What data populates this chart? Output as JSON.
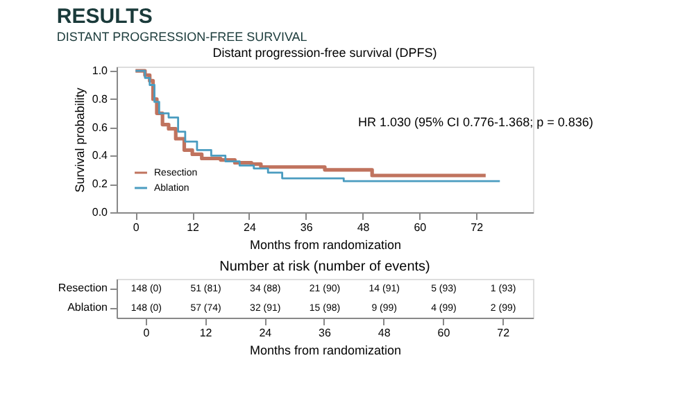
{
  "chart_data": [
    {
      "type": "step",
      "title": "Distant progression-free survival (DPFS)",
      "annotations": [
        "RESULTS",
        "DISTANT PROGRESSION-FREE SURVIVAL",
        "HR 1.030 (95% CI 0.776-1.368; p = 0.836)"
      ],
      "xlabel": "Months from randomization",
      "ylabel": "Survival probability",
      "xlim": [
        -4,
        84
      ],
      "xticks": [
        0,
        12,
        24,
        36,
        48,
        60,
        72
      ],
      "ylim": [
        0,
        1.03
      ],
      "yticks": [
        {
          "value": 0,
          "label": "0.0"
        },
        {
          "value": 0.2,
          "label": "0.2"
        },
        {
          "value": 0.4,
          "label": "0.4"
        },
        {
          "value": 0.6,
          "label": "0.6"
        },
        {
          "value": 0.8,
          "label": "0.8"
        },
        {
          "value": 1,
          "label": "1.0"
        }
      ],
      "grid": false,
      "legend": "bottom left",
      "series": [
        {
          "name": "Resection",
          "color": "#c0735e",
          "x": [
            0,
            2,
            3,
            3.7,
            4.5,
            5.7,
            7,
            8.5,
            10.3,
            12,
            14,
            18,
            21,
            24.5,
            26.5,
            40,
            50,
            74
          ],
          "values": [
            1.0,
            0.97,
            0.93,
            0.8,
            0.7,
            0.62,
            0.59,
            0.52,
            0.44,
            0.41,
            0.38,
            0.37,
            0.35,
            0.34,
            0.32,
            0.3,
            0.26,
            0.26
          ]
        },
        {
          "name": "Ablation",
          "color": "#4a9cc0",
          "x": [
            0,
            2,
            3,
            4,
            5,
            7,
            9,
            10.5,
            13,
            16,
            19,
            22,
            25,
            28,
            31,
            44,
            77
          ],
          "values": [
            1.0,
            0.95,
            0.9,
            0.78,
            0.7,
            0.67,
            0.57,
            0.5,
            0.44,
            0.4,
            0.36,
            0.33,
            0.31,
            0.28,
            0.24,
            0.22,
            0.22
          ]
        }
      ]
    },
    {
      "type": "heatmap",
      "title": "Number at risk (number of events)",
      "xlabel": "Months from randomization",
      "categories": [
        "0",
        "12",
        "24",
        "36",
        "48",
        "60",
        "72"
      ],
      "y_categories": [
        "Resection",
        "Ablation"
      ],
      "cells": [
        [
          null,
          null,
          null,
          null,
          null,
          null,
          null
        ],
        [
          null,
          null,
          null,
          null,
          null,
          null,
          null
        ]
      ],
      "cell_labels": [
        [
          "148 (0)",
          "51 (81)",
          "34 (88)",
          "21 (90)",
          "14 (91)",
          "5 (93)",
          "1 (93)"
        ],
        [
          "148 (0)",
          "57 (74)",
          "32 (91)",
          "15 (98)",
          "9 (99)",
          "4 (99)",
          "2 (99)"
        ]
      ]
    }
  ]
}
